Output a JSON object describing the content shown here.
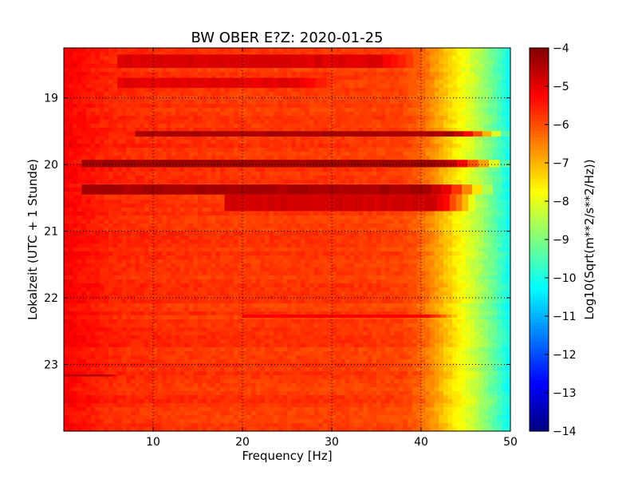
{
  "chart_data": {
    "type": "heatmap",
    "title": "BW OBER E?Z: 2020-01-25",
    "xlabel": "Frequency [Hz]",
    "ylabel": "Lokalzeit (UTC + 1 Stunde)",
    "xlim": [
      0,
      50
    ],
    "ylim_hours": [
      18.25,
      24.0
    ],
    "y_inverted": true,
    "xticks": [
      10,
      20,
      30,
      40,
      50
    ],
    "yticks": [
      19,
      20,
      21,
      22,
      23
    ],
    "grid": true,
    "grid_style": "dotted",
    "colormap": "jet",
    "colorbar": {
      "label": "Log10(Sqrt(m**2/s**2/Hz))",
      "range": [
        -14,
        -4
      ],
      "ticks": [
        -4,
        -5,
        -6,
        -7,
        -8,
        -9,
        -10,
        -11,
        -12,
        -13,
        -14
      ]
    },
    "spectral_profile": {
      "frequency_hz": [
        0,
        5,
        10,
        20,
        30,
        38,
        40,
        42,
        44,
        46,
        48,
        50
      ],
      "log10_amplitude": [
        -5.2,
        -5.6,
        -5.7,
        -5.8,
        -5.8,
        -5.9,
        -6.2,
        -6.9,
        -7.6,
        -8.3,
        -9.2,
        -10.2
      ]
    },
    "bands": [
      {
        "time_start": 18.35,
        "time_end": 18.55,
        "freq_start": 6,
        "freq_end": 40,
        "log10_amplitude": -4.9
      },
      {
        "time_start": 18.7,
        "time_end": 18.85,
        "freq_start": 6,
        "freq_end": 30,
        "log10_amplitude": -5.0
      },
      {
        "time_start": 19.5,
        "time_end": 19.58,
        "freq_start": 8,
        "freq_end": 50,
        "log10_amplitude": -4.4
      },
      {
        "time_start": 19.93,
        "time_end": 20.04,
        "freq_start": 2,
        "freq_end": 50,
        "log10_amplitude": -4.3
      },
      {
        "time_start": 20.3,
        "time_end": 20.45,
        "freq_start": 2,
        "freq_end": 48,
        "log10_amplitude": -4.4
      },
      {
        "time_start": 20.45,
        "time_end": 20.7,
        "freq_start": 18,
        "freq_end": 46,
        "log10_amplitude": -4.8
      },
      {
        "time_start": 22.25,
        "time_end": 22.3,
        "freq_start": 20,
        "freq_end": 44,
        "log10_amplitude": -5.2
      },
      {
        "time_start": 23.15,
        "time_end": 23.18,
        "freq_start": 0,
        "freq_end": 6,
        "log10_amplitude": -4.5
      }
    ]
  }
}
